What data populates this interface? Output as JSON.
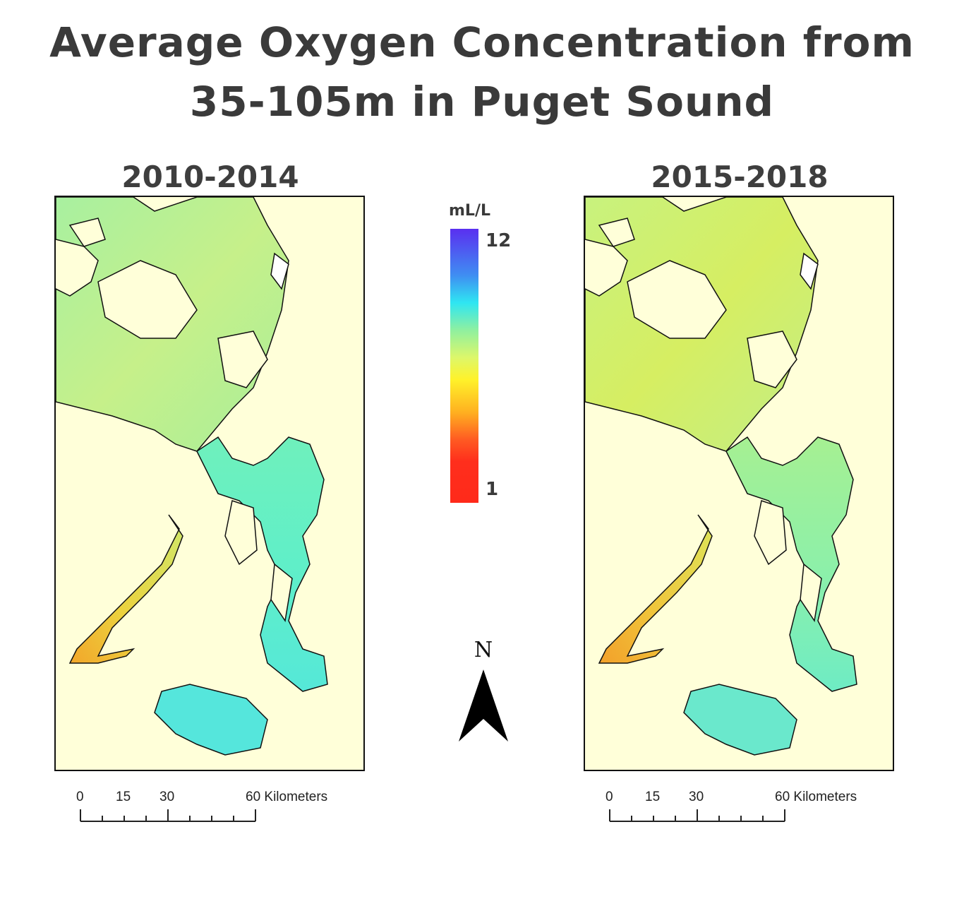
{
  "title": {
    "line1": "Average Oxygen Concentration from",
    "line2": "35-105m in Puget Sound"
  },
  "panels": [
    {
      "label": "2010-2014",
      "palette": "higher-oxygen"
    },
    {
      "label": "2015-2018",
      "palette": "lower-oxygen"
    }
  ],
  "legend": {
    "title": "mL/L",
    "max_label": "12",
    "min_label": "1",
    "colors": [
      "#5a2ff0",
      "#3f8ef2",
      "#2fe6f2",
      "#8ff0a0",
      "#ddf76a",
      "#fff22a",
      "#ffb020",
      "#ff5a22",
      "#ff2a1a"
    ]
  },
  "north_arrow": {
    "label": "N"
  },
  "scale_bar": {
    "labels": [
      "0",
      "15",
      "30",
      "60 Kilometers"
    ]
  },
  "colors": {
    "land": "#ffffd9",
    "outline": "#111111",
    "text": "#3a3a3a"
  }
}
